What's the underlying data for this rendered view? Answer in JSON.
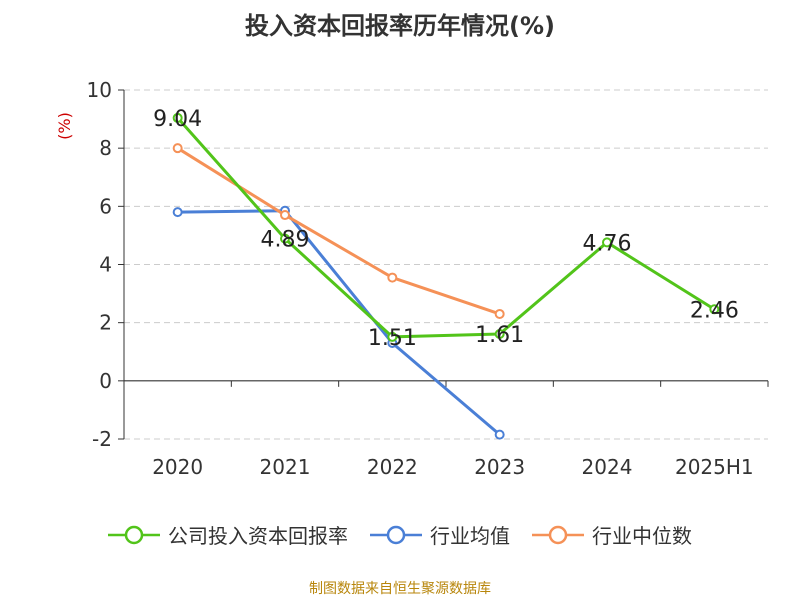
{
  "title": "投入资本回报率历年情况(%)",
  "source": "制图数据来自恒生聚源数据库",
  "chart_data": {
    "type": "line",
    "title": "投入资本回报率历年情况(%)",
    "ylabel": "(%)",
    "xlabel": "",
    "categories": [
      "2020",
      "2021",
      "2022",
      "2023",
      "2024",
      "2025H1"
    ],
    "ylim": [
      -2,
      10
    ],
    "yticks": [
      -2,
      0,
      2,
      4,
      6,
      8,
      10
    ],
    "grid": true,
    "legend_position": "bottom",
    "series": [
      {
        "name": "公司投入资本回报率",
        "color": "#52c41a",
        "values": [
          9.04,
          4.89,
          1.51,
          1.61,
          4.76,
          2.46
        ],
        "value_labels": [
          "9.04",
          "4.89",
          "1.51",
          "1.61",
          "4.76",
          "2.46"
        ]
      },
      {
        "name": "行业均值",
        "color": "#4a7fd6",
        "values": [
          5.8,
          5.85,
          1.3,
          -1.85,
          null,
          null
        ]
      },
      {
        "name": "行业中位数",
        "color": "#f59157",
        "values": [
          8.0,
          5.7,
          3.55,
          2.3,
          null,
          null
        ]
      }
    ]
  }
}
